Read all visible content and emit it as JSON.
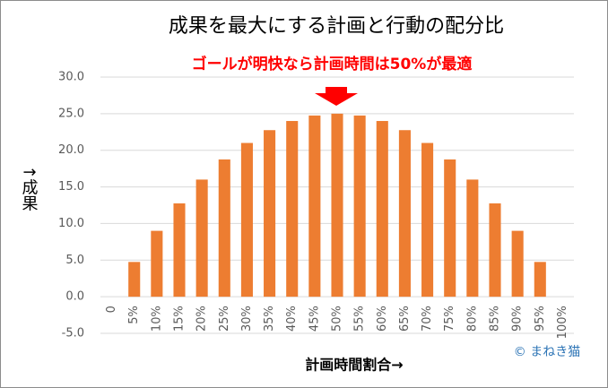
{
  "chart_data": {
    "type": "bar",
    "title": "成果を最大にする計画と行動の配分比",
    "subtitle": "ゴールが明快なら計画時間は50%が最適",
    "y_label": "↑成果",
    "x_label": "計画時間割合→",
    "credit": "© まねき猫",
    "categories": [
      "0",
      "5%",
      "10%",
      "15%",
      "20%",
      "25%",
      "30%",
      "35%",
      "40%",
      "45%",
      "50%",
      "55%",
      "60%",
      "65%",
      "70%",
      "75%",
      "80%",
      "85%",
      "90%",
      "95%",
      "100%"
    ],
    "values": [
      0,
      4.75,
      9,
      12.75,
      16,
      18.75,
      21,
      22.75,
      24,
      24.75,
      25,
      24.75,
      24,
      22.75,
      21,
      18.75,
      16,
      12.75,
      9,
      4.75,
      0
    ],
    "color": "#ed7d31",
    "ylim": [
      -5,
      30
    ],
    "yticks": [
      {
        "value": -5,
        "label": "-5.0"
      },
      {
        "value": 0,
        "label": "0.0"
      },
      {
        "value": 5,
        "label": "5.0"
      },
      {
        "value": 10,
        "label": "10.0"
      },
      {
        "value": 15,
        "label": "15.0"
      },
      {
        "value": 20,
        "label": "20.0"
      },
      {
        "value": 25,
        "label": "25.0"
      },
      {
        "value": 30,
        "label": "30.0"
      }
    ],
    "grid": true
  }
}
